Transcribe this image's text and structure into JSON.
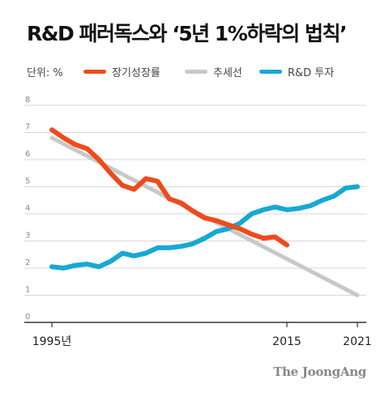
{
  "title": "R&D 패러독스와 ‘5년 1%하락의 법칙’",
  "unit_label": "단위: %",
  "colors": {
    "growth": "#ee4b1d",
    "trend": "#c8c8c8",
    "rnd": "#18a8d3",
    "grid": "#d7d7d7",
    "axis": "#333333"
  },
  "footer": "The JoongAng",
  "chart_data": {
    "type": "line",
    "title": "R&D 패러독스와 ‘5년 1%하락의 법칙’",
    "unit": "단위: %",
    "xlim": [
      1995,
      2021
    ],
    "ylim": [
      0,
      8
    ],
    "yticks": [
      0,
      1,
      2,
      3,
      4,
      5,
      6,
      7,
      8
    ],
    "xtick_labels": [
      {
        "x": 1995,
        "label": "1995년"
      },
      {
        "x": 2015,
        "label": "2015"
      },
      {
        "x": 2021,
        "label": "2021"
      }
    ],
    "grid": true,
    "legend_position": "top",
    "series": [
      {
        "name": "장기성장률",
        "color": "#ee4b1d",
        "points": [
          [
            1995,
            7.1
          ],
          [
            1996,
            6.8
          ],
          [
            1997,
            6.55
          ],
          [
            1998,
            6.4
          ],
          [
            1999,
            6.0
          ],
          [
            2000,
            5.5
          ],
          [
            2001,
            5.05
          ],
          [
            2002,
            4.9
          ],
          [
            2003,
            5.3
          ],
          [
            2004,
            5.2
          ],
          [
            2005,
            4.55
          ],
          [
            2006,
            4.4
          ],
          [
            2007,
            4.1
          ],
          [
            2008,
            3.85
          ],
          [
            2009,
            3.75
          ],
          [
            2010,
            3.6
          ],
          [
            2011,
            3.45
          ],
          [
            2012,
            3.25
          ],
          [
            2013,
            3.1
          ],
          [
            2014,
            3.15
          ],
          [
            2015,
            2.85
          ]
        ]
      },
      {
        "name": "추세선",
        "color": "#c8c8c8",
        "points": [
          [
            1995,
            6.8
          ],
          [
            2021,
            1.0
          ]
        ]
      },
      {
        "name": "R&D 투자",
        "color": "#18a8d3",
        "points": [
          [
            1995,
            2.05
          ],
          [
            1996,
            2.0
          ],
          [
            1997,
            2.1
          ],
          [
            1998,
            2.15
          ],
          [
            1999,
            2.05
          ],
          [
            2000,
            2.25
          ],
          [
            2001,
            2.55
          ],
          [
            2002,
            2.45
          ],
          [
            2003,
            2.55
          ],
          [
            2004,
            2.75
          ],
          [
            2005,
            2.75
          ],
          [
            2006,
            2.8
          ],
          [
            2007,
            2.9
          ],
          [
            2008,
            3.1
          ],
          [
            2009,
            3.35
          ],
          [
            2010,
            3.45
          ],
          [
            2011,
            3.65
          ],
          [
            2012,
            4.0
          ],
          [
            2013,
            4.15
          ],
          [
            2014,
            4.25
          ],
          [
            2015,
            4.15
          ],
          [
            2016,
            4.2
          ],
          [
            2017,
            4.3
          ],
          [
            2018,
            4.5
          ],
          [
            2019,
            4.65
          ],
          [
            2020,
            4.95
          ],
          [
            2021,
            5.0
          ]
        ]
      }
    ]
  }
}
